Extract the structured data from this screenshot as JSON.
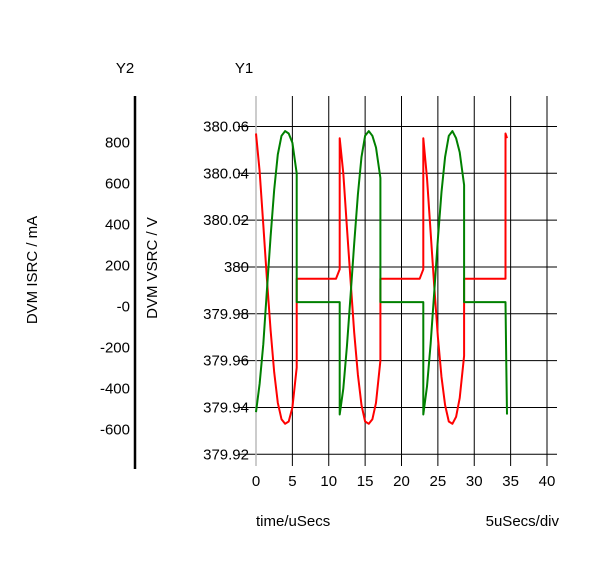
{
  "chart_data": {
    "type": "line",
    "y2_axis_title": "Y2",
    "y1_axis_title": "Y1",
    "y2_label": "DVM ISRC / mA",
    "y1_label": "DVM VSRC / V",
    "xlabel": "time/uSecs",
    "x_division_label": "5uSecs/div",
    "xlim": [
      0,
      40
    ],
    "x_ticks": [
      "0",
      "5",
      "10",
      "15",
      "20",
      "25",
      "30",
      "35",
      "40"
    ],
    "y1_lim": [
      379.915,
      380.073
    ],
    "y1_ticks": [
      "379.92",
      "379.94",
      "379.96",
      "379.98",
      "380",
      "380.02",
      "380.04",
      "380.06"
    ],
    "y2_lim": [
      -778,
      1026
    ],
    "y2_ticks": [
      "-600",
      "-400",
      "-200",
      "-0",
      "200",
      "400",
      "600",
      "800"
    ],
    "grid": true,
    "colors": {
      "current_series": "#ff0000",
      "voltage_series": "#008000"
    },
    "series": [
      {
        "color": "#ff0000",
        "axis": "y1",
        "x": [
          0,
          0.5,
          1,
          1.5,
          2,
          2.5,
          3,
          3.5,
          4,
          4.5,
          5,
          5.6,
          5.6,
          11.0,
          11.5,
          11.5,
          12,
          12.5,
          13,
          13.5,
          14,
          14.5,
          15,
          15.5,
          16,
          16.5,
          17.1,
          17.1,
          22.5,
          23.0,
          23.0,
          23.5,
          24,
          24.5,
          25,
          25.5,
          26,
          26.5,
          27,
          27.5,
          28,
          28.6,
          28.6,
          34.3,
          34.3,
          34.5
        ],
        "y": [
          380.057,
          380.041,
          380.018,
          379.995,
          379.973,
          379.955,
          379.942,
          379.935,
          379.933,
          379.934,
          379.94,
          379.957,
          379.995,
          379.995,
          379.999,
          380.055,
          380.04,
          380.017,
          379.994,
          379.972,
          379.954,
          379.941,
          379.934,
          379.933,
          379.935,
          379.942,
          379.96,
          379.995,
          379.995,
          379.999,
          380.055,
          380.038,
          380.015,
          379.992,
          379.97,
          379.953,
          379.941,
          379.934,
          379.933,
          379.936,
          379.944,
          379.962,
          379.995,
          379.995,
          380.057,
          380.055
        ]
      },
      {
        "color": "#008000",
        "axis": "y1",
        "x": [
          0,
          0.5,
          1,
          1.5,
          2,
          2.5,
          3,
          3.5,
          4,
          4.5,
          5,
          5.6,
          5.6,
          11.5,
          11.5,
          12,
          12.5,
          13,
          13.5,
          14,
          14.5,
          15,
          15.5,
          16,
          16.5,
          17.1,
          17.1,
          23.0,
          23.0,
          23.5,
          24,
          24.5,
          25,
          25.5,
          26,
          26.5,
          27,
          27.5,
          28,
          28.6,
          28.6,
          34.3,
          34.4,
          34.5
        ],
        "y": [
          379.938,
          379.95,
          379.967,
          379.99,
          380.013,
          380.033,
          380.048,
          380.056,
          380.058,
          380.057,
          380.053,
          380.04,
          379.985,
          379.985,
          379.937,
          379.948,
          379.966,
          379.988,
          380.01,
          380.031,
          380.047,
          380.056,
          380.058,
          380.056,
          380.051,
          380.038,
          379.985,
          379.985,
          379.937,
          379.949,
          379.967,
          379.989,
          380.012,
          380.032,
          380.047,
          380.056,
          380.058,
          380.055,
          380.049,
          380.035,
          379.985,
          379.985,
          379.958,
          379.937
        ]
      }
    ]
  }
}
